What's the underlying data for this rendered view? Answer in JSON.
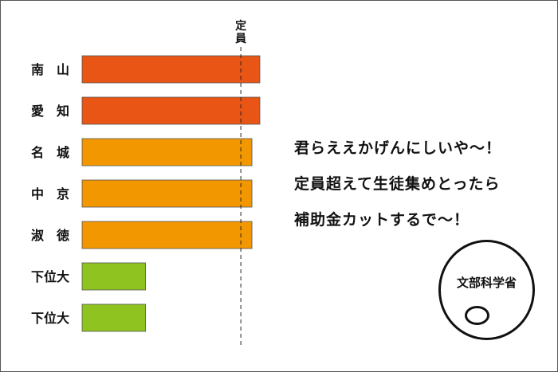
{
  "chart_data": {
    "type": "bar",
    "orientation": "horizontal",
    "categories": [
      "南　山",
      "愛　知",
      "名　城",
      "中　京",
      "淑　徳",
      "下位大",
      "下位大"
    ],
    "values": [
      112,
      112,
      107,
      107,
      107,
      40,
      40
    ],
    "bar_colors": [
      "#e85514",
      "#e85514",
      "#f39700",
      "#f39700",
      "#f39700",
      "#8fc31f",
      "#8fc31f"
    ],
    "reference_line": {
      "label": "定員",
      "value": 100
    },
    "xlim": [
      0,
      112
    ],
    "grid": false
  },
  "speech": {
    "lines": [
      "君らええかげんにしいや〜！",
      "定員超えて生徒集めとったら",
      "補助金カットするで〜！"
    ]
  },
  "character": {
    "label": "文部科学省"
  }
}
